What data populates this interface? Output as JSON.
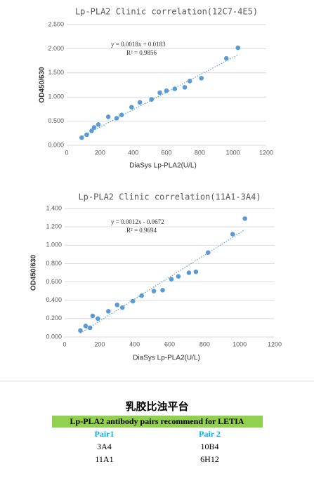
{
  "chart_data": [
    {
      "type": "scatter",
      "title": "Lp-PLA2 Clinic correlation(12C7-4E5)",
      "xlabel": "DiaSys  Lp-PLA2(U/L)",
      "ylabel": "OD450/630",
      "x": [
        90,
        120,
        150,
        165,
        190,
        250,
        300,
        330,
        390,
        440,
        510,
        560,
        600,
        650,
        710,
        740,
        810,
        960,
        1030
      ],
      "values": [
        0.16,
        0.22,
        0.3,
        0.37,
        0.43,
        0.59,
        0.56,
        0.63,
        0.79,
        0.89,
        0.95,
        1.09,
        1.13,
        1.17,
        1.2,
        1.33,
        1.39,
        1.8,
        2.02
      ],
      "color": "#5b9bd5",
      "xlim": [
        0,
        1200
      ],
      "xticks": [
        0,
        200,
        400,
        600,
        800,
        1000,
        1200
      ],
      "ylim": [
        0,
        2.5
      ],
      "yticks": [
        {
          "value": 0,
          "label": "0.000"
        },
        {
          "value": 0.5,
          "label": "0.500"
        },
        {
          "value": 1,
          "label": "1.000"
        },
        {
          "value": 1.5,
          "label": "1.500"
        },
        {
          "value": 2,
          "label": "2.000"
        },
        {
          "value": 2.5,
          "label": "2.500"
        }
      ],
      "grid": true,
      "trendline": {
        "slope": 0.0018,
        "intercept": 0.0183
      },
      "annotations": [
        "y = 0.0018x + 0.0183",
        "R² = 0.9856"
      ]
    },
    {
      "type": "scatter",
      "title": "Lp-PLA2 Clinic correlation(11A1-3A4)",
      "xlabel": "DiaSys  Lp-PLA2(U/L)",
      "ylabel": "OD450/630",
      "x": [
        90,
        120,
        145,
        160,
        190,
        250,
        300,
        330,
        390,
        440,
        510,
        560,
        610,
        650,
        710,
        750,
        820,
        960,
        1030
      ],
      "values": [
        0.07,
        0.12,
        0.1,
        0.23,
        0.2,
        0.28,
        0.35,
        0.32,
        0.39,
        0.45,
        0.5,
        0.51,
        0.63,
        0.66,
        0.7,
        0.71,
        0.92,
        1.12,
        1.29
      ],
      "color": "#5b9bd5",
      "xlim": [
        0,
        1200
      ],
      "xticks": [
        0,
        200,
        400,
        600,
        800,
        1000,
        1200
      ],
      "ylim": [
        0,
        1.4
      ],
      "yticks": [
        {
          "value": 0,
          "label": "0.000"
        },
        {
          "value": 0.2,
          "label": "0.200"
        },
        {
          "value": 0.4,
          "label": "0.400"
        },
        {
          "value": 0.6,
          "label": "0.600"
        },
        {
          "value": 0.8,
          "label": "0.800"
        },
        {
          "value": 1,
          "label": "1.000"
        },
        {
          "value": 1.2,
          "label": "1.200"
        },
        {
          "value": 1.4,
          "label": "1.400"
        }
      ],
      "grid": true,
      "trendline": {
        "slope": 0.0012,
        "intercept": -0.0672
      },
      "annotations": [
        "y = 0.0012x - 0.0672",
        "R² = 0.9694"
      ]
    }
  ],
  "table": {
    "title": "乳胶比浊平台",
    "banner": "Lp-PLA2 antibody pairs recommend for LETIA",
    "header": [
      "Pair1",
      "Pair 2"
    ],
    "rows": [
      [
        "3A4",
        "10B4"
      ],
      [
        "11A1",
        "6H12"
      ]
    ]
  }
}
